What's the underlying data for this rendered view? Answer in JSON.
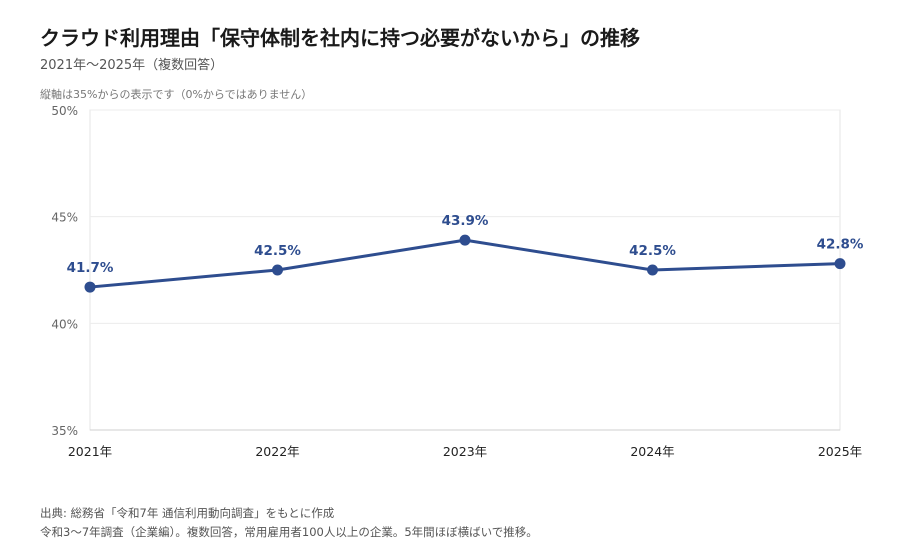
{
  "title": "クラウド利用理由「保守体制を社内に持つ必要がないから」の推移",
  "subtitle": "2021年〜2025年（複数回答）",
  "axis_note": "縦軸は35%からの表示です（0%からではありません）",
  "chart_data": {
    "type": "line",
    "categories": [
      "2021年",
      "2022年",
      "2023年",
      "2024年",
      "2025年"
    ],
    "values": [
      41.7,
      42.5,
      43.9,
      42.5,
      42.8
    ],
    "value_labels": [
      "41.7%",
      "42.5%",
      "43.9%",
      "42.5%",
      "42.8%"
    ],
    "ylim": [
      35,
      50
    ],
    "yticks": [
      35,
      40,
      45,
      50
    ],
    "ytick_labels": [
      "35%",
      "40%",
      "45%",
      "50%"
    ],
    "grid": true,
    "line_color": "#2e4d8f"
  },
  "footer": {
    "source": "出典: 総務省「令和7年 通信利用動向調査」をもとに作成",
    "note": "令和3〜7年調査（企業編）。複数回答，常用雇用者100人以上の企業。5年間ほぼ横ばいで推移。"
  }
}
